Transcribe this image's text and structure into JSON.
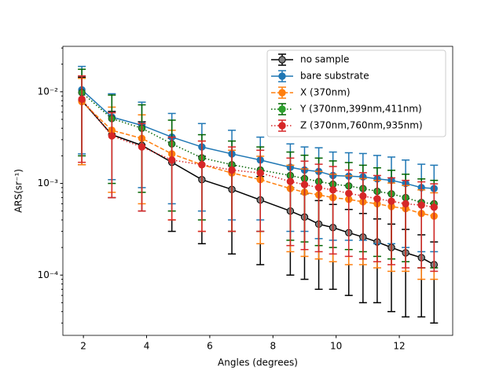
{
  "chart_data": {
    "type": "errorbar",
    "xlabel": "Angles (degrees)",
    "ylabel": "ARS(sr⁻¹)",
    "xlim": [
      1.35,
      13.69
    ],
    "xticks": [
      2,
      4,
      6,
      8,
      10,
      12
    ],
    "ylim": [
      2.2e-05,
      0.0313
    ],
    "yscale": "log",
    "yticks": [
      {
        "value": 0.0001,
        "label": "10⁻⁴"
      },
      {
        "value": 0.001,
        "label": "10⁻³"
      },
      {
        "value": 0.01,
        "label": "10⁻²"
      }
    ],
    "yminorticks": [
      3e-05,
      4e-05,
      5e-05,
      6e-05,
      7e-05,
      8e-05,
      9e-05,
      0.0002,
      0.0003,
      0.0004,
      0.0005,
      0.0006,
      0.0007,
      0.0008,
      0.0009,
      0.002,
      0.003,
      0.004,
      0.005,
      0.006,
      0.007,
      0.008,
      0.009,
      0.02,
      0.03
    ],
    "legend": "upper right",
    "x": [
      1.95,
      2.9,
      3.85,
      4.8,
      5.75,
      6.7,
      7.6,
      8.55,
      9.0,
      9.45,
      9.9,
      10.4,
      10.85,
      11.3,
      11.75,
      12.2,
      12.7,
      13.1
    ],
    "series": [
      {
        "name": "no sample",
        "color": "#000000",
        "marker_face": "#808080",
        "linestyle": "solid",
        "values": [
          0.008,
          0.0034,
          0.0026,
          0.0017,
          0.0011,
          0.00086,
          0.00066,
          0.0005,
          0.00043,
          0.00036,
          0.00033,
          0.00029,
          0.00026,
          0.00023,
          0.0002,
          0.000175,
          0.000155,
          0.00013
        ],
        "errors": [
          0.0064,
          0.0027,
          0.0021,
          0.0014,
          0.00088,
          0.00069,
          0.00053,
          0.0004,
          0.00034,
          0.00029,
          0.00026,
          0.00023,
          0.00021,
          0.00018,
          0.00016,
          0.00014,
          0.00012,
          0.0001
        ]
      },
      {
        "name": "bare substrate",
        "color": "#1f77b4",
        "marker_face": "#1f77b4",
        "linestyle": "solid",
        "values": [
          0.0105,
          0.0053,
          0.0043,
          0.0032,
          0.0025,
          0.0021,
          0.0018,
          0.0015,
          0.0014,
          0.00135,
          0.00122,
          0.0012,
          0.00118,
          0.00112,
          0.00108,
          0.001,
          0.0009,
          0.00088
        ],
        "errors": [
          0.0084,
          0.0042,
          0.0034,
          0.0026,
          0.002,
          0.0017,
          0.0014,
          0.0012,
          0.0011,
          0.0011,
          0.00098,
          0.00096,
          0.00094,
          0.0009,
          0.00086,
          0.0008,
          0.00072,
          0.0007
        ]
      },
      {
        "name": "X (370nm)",
        "color": "#ff7f0e",
        "marker_face": "#ff7f0e",
        "linestyle": "dashed",
        "values": [
          0.0078,
          0.0038,
          0.0031,
          0.0021,
          0.0016,
          0.0013,
          0.0011,
          0.00088,
          0.0008,
          0.00075,
          0.0007,
          0.00067,
          0.00063,
          0.0006,
          0.00056,
          0.00053,
          0.00047,
          0.00044
        ],
        "errors": [
          0.0062,
          0.003,
          0.0025,
          0.0017,
          0.0013,
          0.001,
          0.00088,
          0.0007,
          0.00064,
          0.0006,
          0.00056,
          0.00054,
          0.0005,
          0.00048,
          0.00045,
          0.00042,
          0.00038,
          0.00035
        ]
      },
      {
        "name": "Y (370nm,399nm,411nm)",
        "color": "#006400",
        "marker_face": "#2ca02c",
        "linestyle": "dotted",
        "values": [
          0.0098,
          0.0051,
          0.004,
          0.0027,
          0.0019,
          0.0016,
          0.0014,
          0.00122,
          0.00113,
          0.00105,
          0.00098,
          0.00094,
          0.00088,
          0.00082,
          0.00077,
          0.0007,
          0.00062,
          0.0006
        ],
        "errors": [
          0.0078,
          0.0041,
          0.0032,
          0.0022,
          0.0015,
          0.0013,
          0.0011,
          0.00098,
          0.0009,
          0.00084,
          0.00078,
          0.00075,
          0.0007,
          0.00066,
          0.00062,
          0.00056,
          0.0005,
          0.00048
        ]
      },
      {
        "name": "Z (370nm,760nm,935nm)",
        "color": "#d62728",
        "marker_face": "#d62728",
        "linestyle": "dotted",
        "values": [
          0.0083,
          0.0033,
          0.0025,
          0.0018,
          0.0016,
          0.0014,
          0.0013,
          0.00105,
          0.00097,
          0.0009,
          0.00085,
          0.00078,
          0.00073,
          0.00068,
          0.00064,
          0.0006,
          0.00058,
          0.00055
        ],
        "errors": [
          0.0066,
          0.0026,
          0.002,
          0.0014,
          0.0013,
          0.0011,
          0.001,
          0.00084,
          0.00078,
          0.00072,
          0.00068,
          0.00062,
          0.00058,
          0.00054,
          0.00051,
          0.00048,
          0.00046,
          0.00044
        ]
      }
    ]
  }
}
